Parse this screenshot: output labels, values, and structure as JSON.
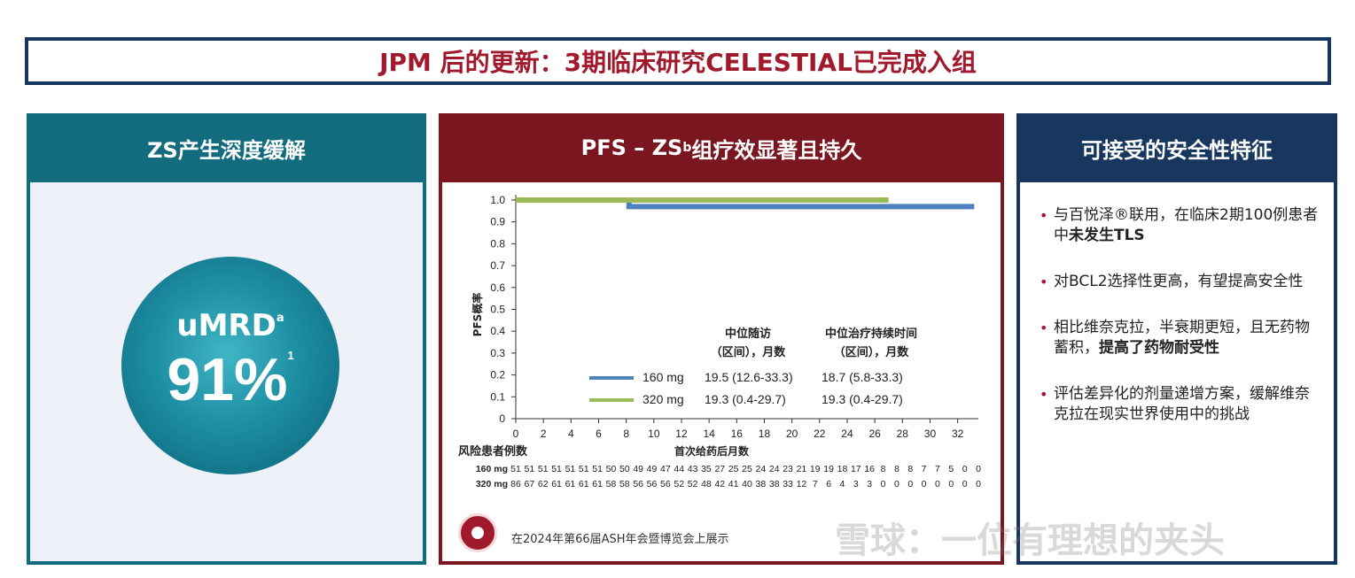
{
  "title": "JPM 后的更新：3期临床研究CELESTIAL已完成入组",
  "left_panel": {
    "heading": "ZS产生深度缓解",
    "metric_label": "uMRD",
    "metric_label_sup": "a",
    "metric_value": "91%",
    "metric_value_sup": "1"
  },
  "middle_panel": {
    "heading_prefix": "PFS – ZS",
    "heading_sup": "b",
    "heading_suffix": "组疗效显著且持久",
    "footer_note": "在2024年第66届ASH年会暨博览会上展示"
  },
  "right_panel": {
    "heading": "可接受的安全性特征",
    "bullets": [
      {
        "text": "与百悦泽®联用，在临床2期100例患者中",
        "bold": "未发生TLS"
      },
      {
        "text": "对BCL2选择性更高，有望提高安全性",
        "bold": ""
      },
      {
        "text": "相比维奈克拉，半衰期更短，且无药物蓄积，",
        "bold": "提高了药物耐受性"
      },
      {
        "text": "评估差异化的剂量递增方案，缓解维奈克拉在现实世界使用中的挑战",
        "bold": ""
      }
    ]
  },
  "watermark": "雪球：一位有理想的夹头",
  "chart_data": {
    "type": "line",
    "ylabel": "PFS概率",
    "xlabel": "首次给药后月数",
    "ylim": [
      0,
      1.0
    ],
    "xlim": [
      0,
      33.5
    ],
    "yticks": [
      "0",
      "0.1",
      "0.2",
      "0.3",
      "0.4",
      "0.5",
      "0.6",
      "0.7",
      "0.8",
      "0.9",
      "1.0"
    ],
    "xticks": [
      "0",
      "2",
      "4",
      "6",
      "8",
      "10",
      "12",
      "14",
      "16",
      "18",
      "20",
      "22",
      "24",
      "26",
      "28",
      "30",
      "32"
    ],
    "series": [
      {
        "name": "160 mg",
        "color": "#4f81bd",
        "points": [
          [
            0,
            1.0
          ],
          [
            8.2,
            1.0
          ],
          [
            8.2,
            0.97
          ],
          [
            33.2,
            0.97
          ]
        ]
      },
      {
        "name": "320 mg",
        "color": "#9bbb59",
        "points": [
          [
            0,
            1.0
          ],
          [
            27,
            1.0
          ]
        ]
      }
    ],
    "table": {
      "col1_header": [
        "中位随访",
        "（区间），月数"
      ],
      "col2_header": [
        "中位治疗持续时间",
        "（区间），月数"
      ],
      "rows": [
        {
          "label": "160 mg",
          "color": "#4f81bd",
          "c1": "19.5 (12.6-33.3)",
          "c2": "18.7 (5.8-33.3)"
        },
        {
          "label": "320 mg",
          "color": "#9bbb59",
          "c1": "19.3 (0.4-29.7)",
          "c2": "19.3 (0.4-29.7)"
        }
      ]
    },
    "risk_table": {
      "header": "风险患者例数",
      "rows": [
        {
          "label": "160 mg",
          "color": "#4f81bd",
          "values": [
            "51",
            "51",
            "51",
            "51",
            "51",
            "51",
            "51",
            "50",
            "50",
            "49",
            "49",
            "47",
            "44",
            "43",
            "35",
            "27",
            "25",
            "25",
            "24",
            "24",
            "23",
            "21",
            "19",
            "19",
            "18",
            "17",
            "16",
            "8",
            "8",
            "8",
            "7",
            "7",
            "5",
            "0",
            "0"
          ]
        },
        {
          "label": "320 mg",
          "color": "#9bbb59",
          "values": [
            "86",
            "67",
            "62",
            "61",
            "61",
            "61",
            "61",
            "58",
            "58",
            "56",
            "56",
            "56",
            "52",
            "52",
            "48",
            "42",
            "41",
            "40",
            "38",
            "38",
            "33",
            "12",
            "7",
            "6",
            "4",
            "3",
            "3",
            "0",
            "0",
            "0",
            "0",
            "0",
            "0",
            "0",
            "0"
          ]
        }
      ]
    }
  }
}
